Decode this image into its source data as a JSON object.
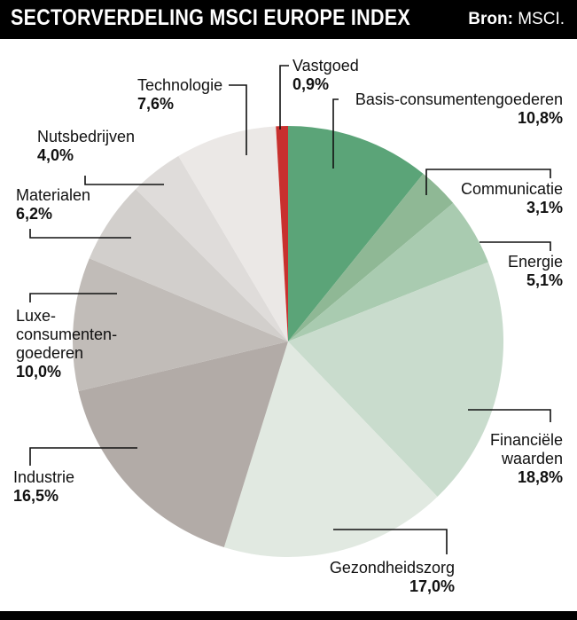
{
  "header": {
    "title": "SECTORVERDELING MSCI EUROPE INDEX",
    "source_label": "Bron:",
    "source_value": "MSCI."
  },
  "chart_data": {
    "type": "pie",
    "title": "SECTORVERDELING MSCI EUROPE INDEX",
    "slices": [
      {
        "name": "Basis-consumentengoederen",
        "value": 10.8,
        "label": "10,8%",
        "color": "#5ba478"
      },
      {
        "name": "Communicatie",
        "value": 3.1,
        "label": "3,1%",
        "color": "#8fb895"
      },
      {
        "name": "Energie",
        "value": 5.1,
        "label": "5,1%",
        "color": "#a9cbb0"
      },
      {
        "name": "Financiële waarden",
        "value": 18.8,
        "label": "18,8%",
        "color": "#c9dccd"
      },
      {
        "name": "Gezondheidszorg",
        "value": 17.0,
        "label": "17,0%",
        "color": "#e1e9e1"
      },
      {
        "name": "Industrie",
        "value": 16.5,
        "label": "16,5%",
        "color": "#b2aba7"
      },
      {
        "name": "Luxe-consumentengoederen",
        "value": 10.0,
        "label": "10,0%",
        "color": "#c1bcb8"
      },
      {
        "name": "Materialen",
        "value": 6.2,
        "label": "6,2%",
        "color": "#d2cfcc"
      },
      {
        "name": "Nutsbedrijven",
        "value": 4.0,
        "label": "4,0%",
        "color": "#dfdcda"
      },
      {
        "name": "Technologie",
        "value": 7.6,
        "label": "7,6%",
        "color": "#ebe8e6"
      },
      {
        "name": "Vastgoed",
        "value": 0.9,
        "label": "0,9%",
        "color": "#c8302e"
      }
    ],
    "labels": {
      "basis": {
        "line1": "Basis-consumentengoederen",
        "pct": "10,8%"
      },
      "communicatie": {
        "line1": "Communicatie",
        "pct": "3,1%"
      },
      "energie": {
        "line1": "Energie",
        "pct": "5,1%"
      },
      "financiele": {
        "line1": "Financiële",
        "line2": "waarden",
        "pct": "18,8%"
      },
      "gezondheid": {
        "line1": "Gezondheidszorg",
        "pct": "17,0%"
      },
      "industrie": {
        "line1": "Industrie",
        "pct": "16,5%"
      },
      "luxe": {
        "line1": "Luxe-",
        "line2": "consumenten-",
        "line3": "goederen",
        "pct": "10,0%"
      },
      "materialen": {
        "line1": "Materialen",
        "pct": "6,2%"
      },
      "nuts": {
        "line1": "Nutsbedrijven",
        "pct": "4,0%"
      },
      "technologie": {
        "line1": "Technologie",
        "pct": "7,6%"
      },
      "vastgoed": {
        "line1": "Vastgoed",
        "pct": "0,9%"
      }
    }
  }
}
